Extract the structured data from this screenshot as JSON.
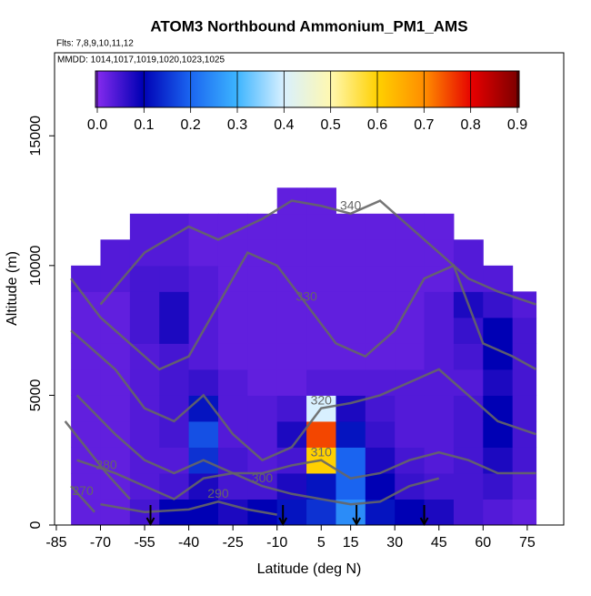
{
  "chart_data": {
    "type": "heatmap",
    "title": "ATOM3 Northbound Ammonium_PM1_AMS",
    "subtitle": "Flts: 7,8,9,10,11,12",
    "annotation": "MMDD: 1014,1017,1019,1020,1023,1025",
    "xlabel": "Latitude (deg N)",
    "ylabel": "Altitude (m)",
    "xlim": [
      -85.6,
      87.4
    ],
    "ylim": [
      0,
      18200
    ],
    "xticks": [
      -85,
      -70,
      -55,
      -40,
      -25,
      -10,
      5,
      15,
      30,
      45,
      60,
      75
    ],
    "yticks": [
      0,
      5000,
      10000,
      15000
    ],
    "clim": [
      0,
      0.9
    ],
    "cticks": [
      {
        "value": 0,
        "label": "0.0"
      },
      0.1,
      0.2,
      0.3,
      0.4,
      0.5,
      0.6,
      0.7,
      0.8,
      0.9
    ],
    "colormap": [
      "#8a2cf0",
      "#0000b4",
      "#1a64f0",
      "#3cb4ff",
      "#d8f0ff",
      "#fff8b0",
      "#ffd000",
      "#ff8c00",
      "#e60000",
      "#7a0000"
    ],
    "x_edges": [
      -80,
      -70,
      -60,
      -50,
      -40,
      -30,
      -20,
      -10,
      0,
      10,
      20,
      30,
      40,
      50,
      60,
      70,
      78
    ],
    "y_edges": [
      0,
      1000,
      2000,
      3000,
      4000,
      5000,
      6000,
      7000,
      8000,
      9000,
      10000,
      11000,
      12000,
      13000
    ],
    "z": [
      [
        0.03,
        0.03,
        0.05,
        0.1,
        0.1,
        0.08,
        0.1,
        0.12,
        0.15,
        0.25,
        0.12,
        0.1,
        0.08,
        0.05,
        0.04,
        0.03
      ],
      [
        0.03,
        0.03,
        0.04,
        0.05,
        0.08,
        0.05,
        0.05,
        0.08,
        0.12,
        0.2,
        0.1,
        0.06,
        0.05,
        0.05,
        0.06,
        0.04
      ],
      [
        0.03,
        0.03,
        0.04,
        0.04,
        0.15,
        0.05,
        0.04,
        0.05,
        0.6,
        0.2,
        0.08,
        0.05,
        0.04,
        0.05,
        0.08,
        0.05
      ],
      [
        0.03,
        0.03,
        0.04,
        0.05,
        0.18,
        0.04,
        0.04,
        0.08,
        0.75,
        0.12,
        0.06,
        0.04,
        0.04,
        0.05,
        0.1,
        0.05
      ],
      [
        0.03,
        0.03,
        0.04,
        0.05,
        0.12,
        0.04,
        0.04,
        0.05,
        0.4,
        0.08,
        0.05,
        0.04,
        0.04,
        0.05,
        0.1,
        0.05
      ],
      [
        0.03,
        0.03,
        0.04,
        0.05,
        0.06,
        0.04,
        0.03,
        0.03,
        0.04,
        0.04,
        0.04,
        0.04,
        0.04,
        0.04,
        0.08,
        0.05
      ],
      [
        0.03,
        0.03,
        0.04,
        0.05,
        0.04,
        0.03,
        0.03,
        0.03,
        0.03,
        0.03,
        0.03,
        0.03,
        0.04,
        0.05,
        0.1,
        0.05
      ],
      [
        0.03,
        0.03,
        0.05,
        0.08,
        0.04,
        0.03,
        0.03,
        0.03,
        0.03,
        0.03,
        0.03,
        0.03,
        0.04,
        0.06,
        0.1,
        0.05
      ],
      [
        0.03,
        0.03,
        0.05,
        0.08,
        0.04,
        0.03,
        0.03,
        0.03,
        0.03,
        0.03,
        0.03,
        0.03,
        0.04,
        0.08,
        0.06,
        0.04
      ],
      [
        0.04,
        0.04,
        0.05,
        0.05,
        0.04,
        0.03,
        0.03,
        0.03,
        0.03,
        0.03,
        0.03,
        0.03,
        0.03,
        0.04,
        0.04,
        null
      ],
      [
        null,
        0.04,
        0.04,
        0.04,
        0.03,
        0.03,
        0.03,
        0.03,
        0.03,
        0.03,
        0.03,
        0.03,
        0.03,
        0.04,
        null,
        null
      ],
      [
        null,
        null,
        0.04,
        0.04,
        0.03,
        0.03,
        0.03,
        0.03,
        0.03,
        0.03,
        0.03,
        0.03,
        0.03,
        null,
        null,
        null
      ],
      [
        null,
        null,
        null,
        null,
        null,
        null,
        null,
        0.03,
        0.03,
        null,
        null,
        null,
        null,
        null,
        null,
        null
      ]
    ],
    "contour_color": "#666666",
    "contours": [
      {
        "label": "340",
        "lat": [
          -70,
          -55,
          -40,
          -30,
          -15,
          -5,
          5,
          15,
          25,
          35,
          45,
          55,
          65,
          78
        ],
        "alt": [
          8500,
          10500,
          11500,
          11000,
          11800,
          12500,
          12300,
          12000,
          12500,
          11500,
          10500,
          9500,
          9000,
          8500
        ]
      },
      {
        "label": "330",
        "lat": [
          -80,
          -70,
          -60,
          -50,
          -40,
          -30,
          -20,
          -10,
          0,
          10,
          20,
          30,
          40,
          50,
          60,
          70,
          78
        ],
        "alt": [
          9500,
          8000,
          7000,
          6000,
          6500,
          8500,
          10500,
          10000,
          8500,
          7000,
          6500,
          7500,
          9500,
          10000,
          7000,
          6500,
          6000
        ]
      },
      {
        "label": "320",
        "lat": [
          -80,
          -65,
          -55,
          -45,
          -35,
          -25,
          -15,
          -5,
          5,
          15,
          25,
          35,
          45,
          55,
          65,
          78
        ],
        "alt": [
          7500,
          6000,
          4500,
          4000,
          5000,
          3500,
          2500,
          3000,
          4500,
          4700,
          5000,
          5500,
          6000,
          5000,
          4000,
          3500
        ]
      },
      {
        "label": "310",
        "lat": [
          -78,
          -65,
          -55,
          -45,
          -35,
          -25,
          -15,
          -5,
          5,
          15,
          25,
          35,
          45,
          55,
          65,
          78
        ],
        "alt": [
          5000,
          3500,
          2500,
          2000,
          2500,
          2000,
          2000,
          2300,
          2500,
          1800,
          2000,
          2500,
          2800,
          2500,
          2000,
          2000
        ]
      },
      {
        "label": "300",
        "lat": [
          -78,
          -65,
          -55,
          -45,
          -35,
          -25,
          -15,
          -5,
          5,
          15,
          25,
          35,
          45
        ],
        "alt": [
          2500,
          2000,
          1500,
          1000,
          1800,
          2000,
          1500,
          1200,
          1000,
          800,
          900,
          1500,
          1800
        ]
      },
      {
        "label": "290",
        "lat": [
          -70,
          -55,
          -40,
          -30,
          -20,
          -10
        ],
        "alt": [
          800,
          500,
          600,
          900,
          600,
          400
        ]
      },
      {
        "label": "280",
        "lat": [
          -82,
          -75,
          -68,
          -60
        ],
        "alt": [
          4000,
          3000,
          2000,
          1000
        ]
      },
      {
        "label": "270",
        "lat": [
          -80,
          -76,
          -72
        ],
        "alt": [
          1500,
          1000,
          500
        ]
      }
    ],
    "arrows": [
      -53,
      -8,
      17,
      40
    ]
  }
}
